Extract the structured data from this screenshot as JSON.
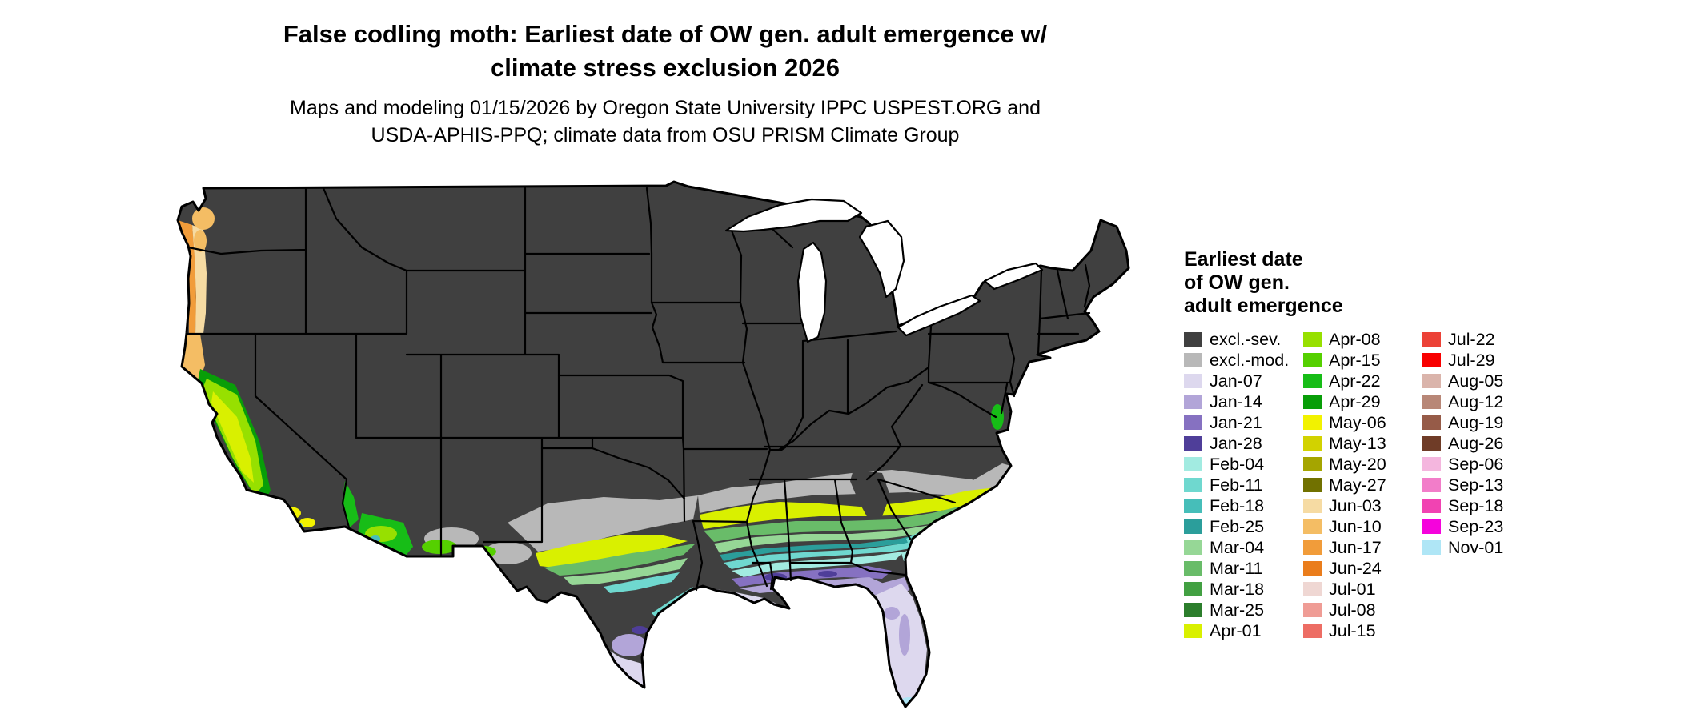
{
  "title": {
    "line1": "False codling moth: Earliest date of OW gen. adult emergence w/",
    "line2": "climate stress exclusion 2026"
  },
  "subtitle": {
    "line1": "Maps and modeling 01/15/2026 by Oregon State University IPPC USPEST.ORG and",
    "line2": "USDA-APHIS-PPQ; climate data from OSU PRISM Climate Group"
  },
  "legend": {
    "title_lines": [
      "Earliest date",
      "of OW gen.",
      "adult emergence"
    ],
    "columns": [
      [
        {
          "label": "excl.-sev.",
          "color": "#404040"
        },
        {
          "label": "excl.-mod.",
          "color": "#b8b8b8"
        },
        {
          "label": "Jan-07",
          "color": "#ddd8ee"
        },
        {
          "label": "Jan-14",
          "color": "#b2a5d8"
        },
        {
          "label": "Jan-21",
          "color": "#8671c1"
        },
        {
          "label": "Jan-28",
          "color": "#4f3e99"
        },
        {
          "label": "Feb-04",
          "color": "#a2ebe1"
        },
        {
          "label": "Feb-11",
          "color": "#6fd8cf"
        },
        {
          "label": "Feb-18",
          "color": "#46beb9"
        },
        {
          "label": "Feb-25",
          "color": "#2b9e9b"
        },
        {
          "label": "Mar-04",
          "color": "#96d796"
        },
        {
          "label": "Mar-11",
          "color": "#69bc69"
        },
        {
          "label": "Mar-18",
          "color": "#42a042"
        },
        {
          "label": "Mar-25",
          "color": "#2c7e2c"
        },
        {
          "label": "Apr-01",
          "color": "#d9f000"
        }
      ],
      [
        {
          "label": "Apr-08",
          "color": "#97e000"
        },
        {
          "label": "Apr-15",
          "color": "#55d000"
        },
        {
          "label": "Apr-22",
          "color": "#17bd17"
        },
        {
          "label": "Apr-29",
          "color": "#089e08"
        },
        {
          "label": "May-06",
          "color": "#f2f200"
        },
        {
          "label": "May-13",
          "color": "#d2d200"
        },
        {
          "label": "May-20",
          "color": "#a5a500"
        },
        {
          "label": "May-27",
          "color": "#717100"
        },
        {
          "label": "Jun-03",
          "color": "#f6dba3"
        },
        {
          "label": "Jun-10",
          "color": "#f4bd64"
        },
        {
          "label": "Jun-17",
          "color": "#f19c3a"
        },
        {
          "label": "Jun-24",
          "color": "#ea7d1c"
        },
        {
          "label": "Jul-01",
          "color": "#efd7d3"
        },
        {
          "label": "Jul-08",
          "color": "#ef9c95"
        },
        {
          "label": "Jul-15",
          "color": "#ed6d64"
        }
      ],
      [
        {
          "label": "Jul-22",
          "color": "#ec4237"
        },
        {
          "label": "Jul-29",
          "color": "#f80000"
        },
        {
          "label": "Aug-05",
          "color": "#dab4ab"
        },
        {
          "label": "Aug-12",
          "color": "#b88777"
        },
        {
          "label": "Aug-19",
          "color": "#965b48"
        },
        {
          "label": "Aug-26",
          "color": "#6f3c27"
        },
        {
          "label": "Sep-06",
          "color": "#f4b6de"
        },
        {
          "label": "Sep-13",
          "color": "#f27dc9"
        },
        {
          "label": "Sep-18",
          "color": "#f143b2"
        },
        {
          "label": "Sep-23",
          "color": "#f503dc"
        },
        {
          "label": "Nov-01",
          "color": "#afe6f6"
        }
      ]
    ]
  }
}
